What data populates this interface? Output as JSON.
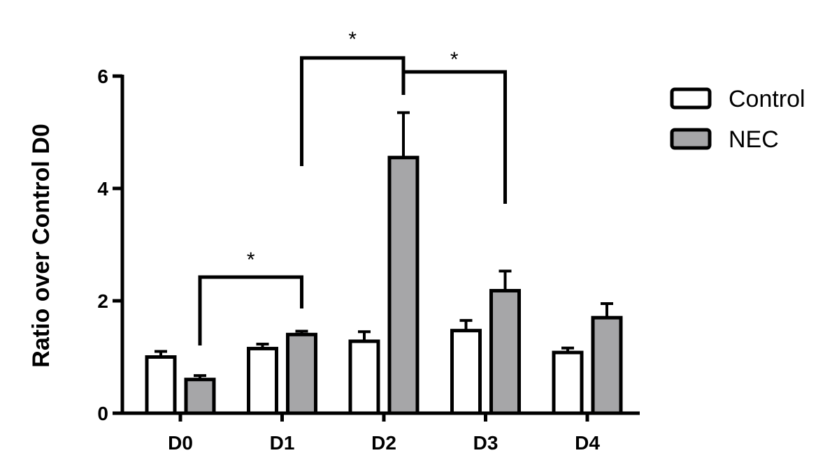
{
  "chart_data": {
    "type": "bar",
    "title": "",
    "xlabel": "",
    "ylabel": "Ratio over Control D0",
    "categories": [
      "D0",
      "D1",
      "D2",
      "D3",
      "D4"
    ],
    "ylim": [
      0,
      6
    ],
    "yticks": [
      0,
      2,
      4,
      6
    ],
    "grid": false,
    "legend_position": "right",
    "series": [
      {
        "name": "Control",
        "color": "#ffffff",
        "values": [
          1.0,
          1.15,
          1.28,
          1.47,
          1.08
        ],
        "errors": [
          0.1,
          0.08,
          0.17,
          0.18,
          0.08
        ]
      },
      {
        "name": "NEC",
        "color": "#a6a6a8",
        "values": [
          0.6,
          1.4,
          4.55,
          2.18,
          1.7
        ],
        "errors": [
          0.07,
          0.06,
          0.8,
          0.35,
          0.25
        ]
      }
    ],
    "annotations": [
      {
        "label": "*",
        "from": {
          "category": "D0",
          "series": "NEC"
        },
        "to": {
          "category": "D1",
          "series": "NEC"
        }
      },
      {
        "label": "*",
        "from": {
          "category": "D1",
          "series": "NEC"
        },
        "to": {
          "category": "D2",
          "series": "NEC"
        }
      },
      {
        "label": "*",
        "from": {
          "category": "D2",
          "series": "NEC"
        },
        "to": {
          "category": "D3",
          "series": "NEC"
        }
      }
    ]
  }
}
